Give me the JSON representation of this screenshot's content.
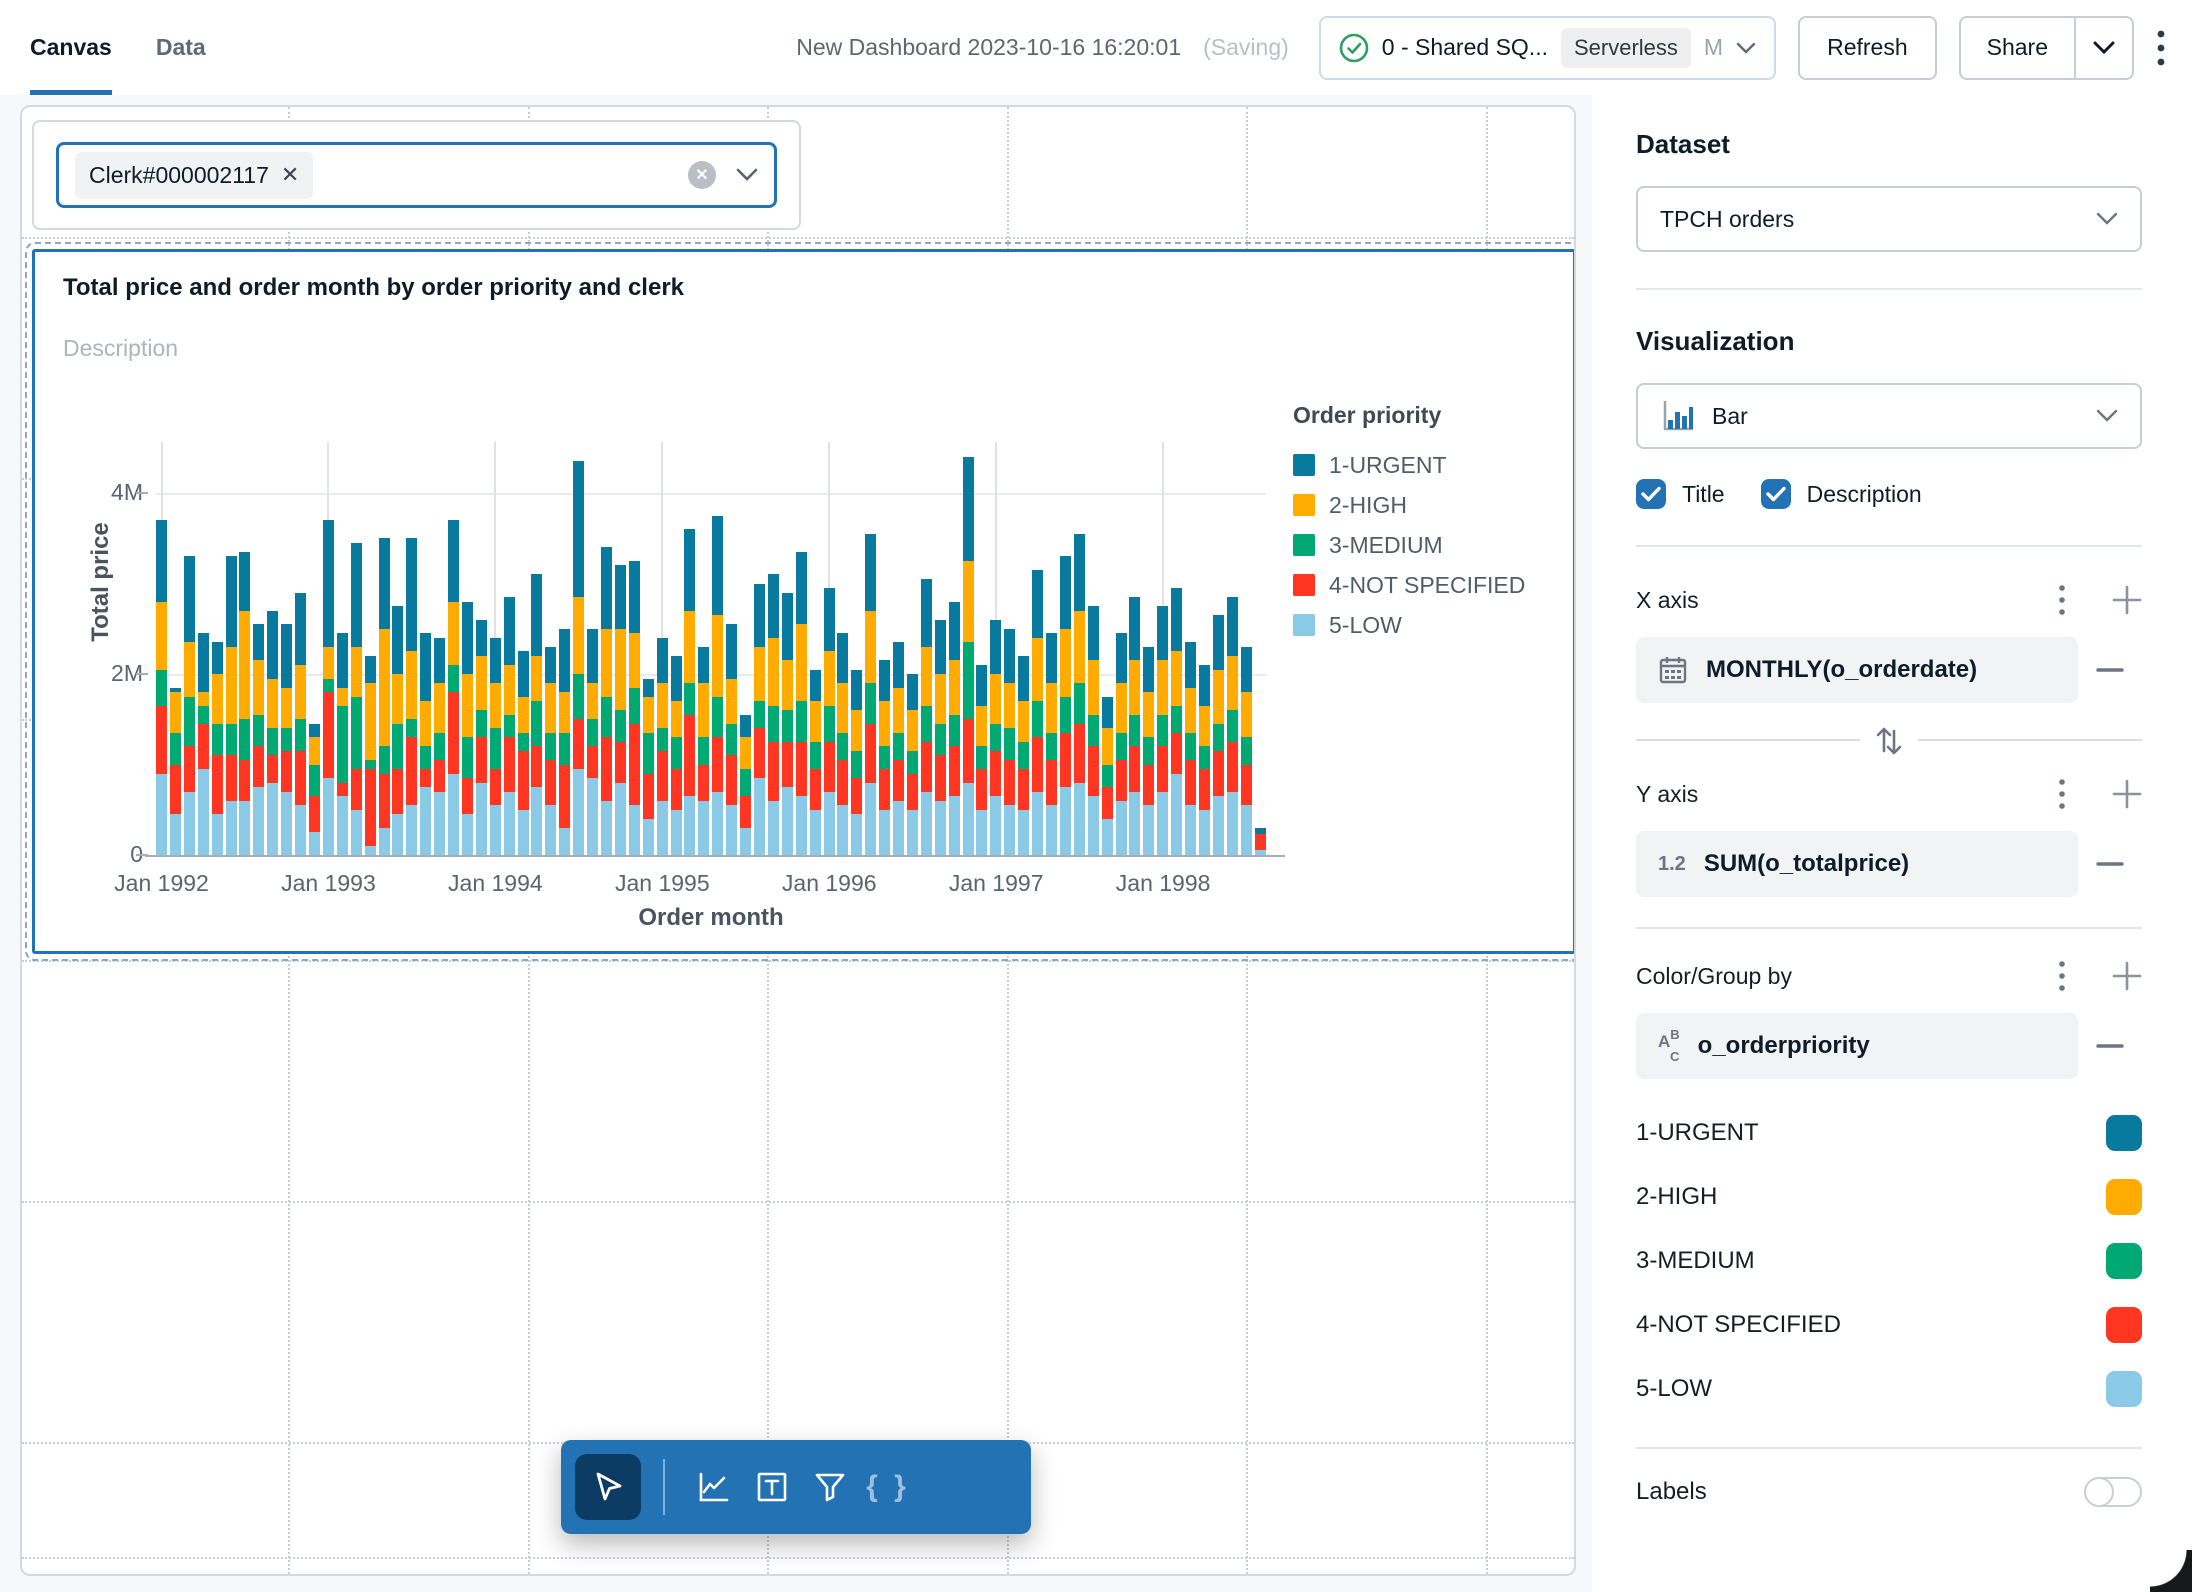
{
  "topbar": {
    "tabs": [
      {
        "label": "Canvas",
        "active": true
      },
      {
        "label": "Data",
        "active": false
      }
    ],
    "title": "New Dashboard 2023-10-16 16:20:01",
    "saving": "(Saving)",
    "warehouse": {
      "name": "0 - Shared SQ...",
      "badge": "Serverless",
      "size": "M"
    },
    "refresh_label": "Refresh",
    "share_label": "Share"
  },
  "filter": {
    "value": "Clerk#000002117"
  },
  "chart_widget": {
    "title": "Total price and order month by order priority and clerk",
    "description_placeholder": "Description",
    "y_axis_title": "Total price",
    "x_axis_title": "Order month",
    "legend_title": "Order priority"
  },
  "toolbar": {
    "tools": [
      "cursor",
      "add-visualization",
      "add-text",
      "add-filter",
      "braces"
    ],
    "selected": "cursor"
  },
  "sidebar": {
    "dataset_heading": "Dataset",
    "dataset_value": "TPCH orders",
    "visualization_heading": "Visualization",
    "visualization_value": "Bar",
    "title_checkbox": "Title",
    "description_checkbox": "Description",
    "x_axis_label": "X axis",
    "x_field": "MONTHLY(o_orderdate)",
    "y_axis_label": "Y axis",
    "y_field": "SUM(o_totalprice)",
    "color_label": "Color/Group by",
    "color_field": "o_orderpriority",
    "labels_label": "Labels",
    "labels_on": false
  },
  "colors": {
    "accent": "#2272B4",
    "1-URGENT": "#077A9D",
    "2-HIGH": "#FFAB00",
    "3-MEDIUM": "#00A972",
    "4-NOT SPECIFIED": "#FF3621",
    "5-LOW": "#8BCAE7"
  },
  "chart_data": {
    "type": "bar",
    "stacked": true,
    "title": "Total price and order month by order priority and clerk",
    "xlabel": "Order month",
    "ylabel": "Total price",
    "unit": "millions",
    "ylim": [
      0,
      4.6
    ],
    "y_ticks": [
      {
        "label": "4M",
        "value": 4
      },
      {
        "label": "2M",
        "value": 2
      },
      {
        "label": "0",
        "value": 0
      }
    ],
    "x_ticks": {
      "labels": [
        "Jan 1992",
        "Jan 1993",
        "Jan 1994",
        "Jan 1995",
        "Jan 1996",
        "Jan 1997",
        "Jan 1998"
      ],
      "month_indices": [
        0,
        12,
        24,
        36,
        48,
        60,
        72
      ]
    },
    "legend_position": "right",
    "stack_order_bottom_to_top": [
      "5-LOW",
      "4-NOT SPECIFIED",
      "3-MEDIUM",
      "2-HIGH",
      "1-URGENT"
    ],
    "categories": [
      "1992-01",
      "1992-02",
      "1992-03",
      "1992-04",
      "1992-05",
      "1992-06",
      "1992-07",
      "1992-08",
      "1992-09",
      "1992-10",
      "1992-11",
      "1992-12",
      "1993-01",
      "1993-02",
      "1993-03",
      "1993-04",
      "1993-05",
      "1993-06",
      "1993-07",
      "1993-08",
      "1993-09",
      "1993-10",
      "1993-11",
      "1993-12",
      "1994-01",
      "1994-02",
      "1994-03",
      "1994-04",
      "1994-05",
      "1994-06",
      "1994-07",
      "1994-08",
      "1994-09",
      "1994-10",
      "1994-11",
      "1994-12",
      "1995-01",
      "1995-02",
      "1995-03",
      "1995-04",
      "1995-05",
      "1995-06",
      "1995-07",
      "1995-08",
      "1995-09",
      "1995-10",
      "1995-11",
      "1995-12",
      "1996-01",
      "1996-02",
      "1996-03",
      "1996-04",
      "1996-05",
      "1996-06",
      "1996-07",
      "1996-08",
      "1996-09",
      "1996-10",
      "1996-11",
      "1996-12",
      "1997-01",
      "1997-02",
      "1997-03",
      "1997-04",
      "1997-05",
      "1997-06",
      "1997-07",
      "1997-08",
      "1997-09",
      "1997-10",
      "1997-11",
      "1997-12",
      "1998-01",
      "1998-02",
      "1998-03",
      "1998-04",
      "1998-05",
      "1998-06",
      "1998-07",
      "1998-08"
    ],
    "series": [
      {
        "name": "1-URGENT",
        "values": [
          0.9,
          0.05,
          0.95,
          0.65,
          0.35,
          1.0,
          0.65,
          0.4,
          0.75,
          0.7,
          0.8,
          0.15,
          1.4,
          0.6,
          1.15,
          0.3,
          1.0,
          0.75,
          1.25,
          0.75,
          0.5,
          0.9,
          0.8,
          0.4,
          0.5,
          0.75,
          0.5,
          0.9,
          0.4,
          0.7,
          1.5,
          0.6,
          0.9,
          0.7,
          0.8,
          0.2,
          0.5,
          0.5,
          0.9,
          0.4,
          1.1,
          0.6,
          0.25,
          0.7,
          0.7,
          0.75,
          0.8,
          0.35,
          0.7,
          0.55,
          0.45,
          0.85,
          0.45,
          0.5,
          0.4,
          0.75,
          0.6,
          0.65,
          1.15,
          0.45,
          0.6,
          0.6,
          0.5,
          0.75,
          0.55,
          0.8,
          0.85,
          0.6,
          0.35,
          0.55,
          0.7,
          0.5,
          0.6,
          0.7,
          0.5,
          0.45,
          0.6,
          0.65,
          0.5,
          0.07
        ]
      },
      {
        "name": "2-HIGH",
        "values": [
          0.75,
          0.45,
          0.6,
          0.15,
          0.55,
          0.85,
          1.2,
          0.6,
          0.55,
          0.45,
          0.6,
          0.3,
          0.35,
          0.2,
          0.55,
          0.85,
          1.3,
          0.55,
          0.75,
          0.5,
          0.55,
          0.7,
          0.7,
          0.6,
          0.5,
          0.55,
          0.4,
          0.5,
          0.55,
          0.45,
          0.85,
          0.4,
          0.75,
          0.9,
          0.6,
          0.4,
          0.5,
          0.4,
          0.8,
          0.6,
          0.9,
          0.5,
          0.35,
          0.6,
          0.75,
          0.55,
          0.85,
          0.45,
          0.6,
          0.55,
          0.45,
          0.8,
          0.5,
          0.5,
          0.45,
          0.65,
          0.55,
          0.6,
          0.9,
          0.45,
          0.55,
          0.5,
          0.45,
          0.7,
          0.55,
          0.75,
          0.8,
          0.6,
          0.4,
          0.55,
          0.6,
          0.5,
          0.6,
          0.6,
          0.5,
          0.45,
          0.6,
          0.6,
          0.5,
          0
        ]
      },
      {
        "name": "3-MEDIUM",
        "values": [
          0.4,
          0.35,
          0.55,
          0.2,
          0.35,
          0.35,
          0.45,
          0.35,
          0.3,
          0.25,
          0.35,
          0.35,
          0.15,
          0.85,
          0.8,
          0.1,
          0.3,
          0.5,
          0.2,
          0.25,
          0.3,
          0.3,
          0.45,
          0.3,
          0.45,
          0.25,
          0.2,
          0.5,
          0.3,
          0.35,
          0.5,
          0.3,
          0.45,
          0.35,
          0.4,
          0.45,
          0.25,
          0.35,
          0.35,
          0.3,
          0.45,
          0.35,
          0.3,
          0.3,
          0.4,
          0.35,
          0.45,
          0.3,
          0.4,
          0.3,
          0.3,
          0.45,
          0.25,
          0.3,
          0.25,
          0.4,
          0.35,
          0.35,
          0.85,
          0.25,
          0.3,
          0.35,
          0.3,
          0.4,
          0.3,
          0.4,
          0.45,
          0.35,
          0.25,
          0.3,
          0.35,
          0.3,
          0.35,
          0.3,
          0.3,
          0.25,
          0.3,
          0.35,
          0.3,
          0
        ]
      },
      {
        "name": "4-NOT SPECIFIED",
        "values": [
          0.75,
          0.55,
          0.5,
          0.5,
          0.65,
          0.5,
          0.45,
          0.45,
          0.3,
          0.45,
          0.6,
          0.4,
          0.95,
          0.15,
          0.45,
          0.85,
          0.6,
          0.5,
          0.75,
          0.2,
          0.35,
          0.9,
          0.4,
          0.5,
          0.4,
          0.6,
          0.65,
          0.45,
          0.5,
          0.7,
          0.55,
          0.35,
          0.7,
          0.45,
          0.9,
          0.5,
          0.55,
          0.45,
          0.9,
          0.4,
          0.6,
          0.55,
          0.35,
          0.55,
          0.65,
          0.5,
          0.6,
          0.45,
          0.55,
          0.5,
          0.4,
          0.65,
          0.45,
          0.45,
          0.4,
          0.55,
          0.5,
          0.55,
          0.7,
          0.45,
          0.5,
          0.5,
          0.45,
          0.6,
          0.5,
          0.6,
          0.65,
          0.55,
          0.35,
          0.45,
          0.5,
          0.45,
          0.5,
          0.45,
          0.5,
          0.45,
          0.5,
          0.55,
          0.45,
          0.18
        ]
      },
      {
        "name": "5-LOW",
        "values": [
          0.9,
          0.45,
          0.7,
          0.95,
          0.45,
          0.6,
          0.6,
          0.75,
          0.8,
          0.7,
          0.55,
          0.25,
          0.85,
          0.65,
          0.5,
          0.1,
          0.3,
          0.45,
          0.55,
          0.75,
          0.7,
          0.9,
          0.45,
          0.8,
          0.55,
          0.7,
          0.5,
          0.75,
          0.55,
          0.3,
          0.95,
          0.85,
          0.6,
          0.8,
          0.55,
          0.4,
          0.6,
          0.5,
          0.65,
          0.6,
          0.7,
          0.55,
          0.3,
          0.85,
          0.6,
          0.75,
          0.65,
          0.5,
          0.7,
          0.55,
          0.45,
          0.8,
          0.5,
          0.6,
          0.5,
          0.7,
          0.6,
          0.65,
          0.8,
          0.5,
          0.65,
          0.55,
          0.5,
          0.7,
          0.55,
          0.75,
          0.8,
          0.65,
          0.4,
          0.6,
          0.7,
          0.55,
          0.7,
          0.9,
          0.55,
          0.5,
          0.65,
          0.7,
          0.55,
          0.05
        ]
      }
    ]
  },
  "sidebar_legend": [
    {
      "label": "1-URGENT",
      "color": "#077A9D"
    },
    {
      "label": "2-HIGH",
      "color": "#FFAB00"
    },
    {
      "label": "3-MEDIUM",
      "color": "#00A972"
    },
    {
      "label": "4-NOT SPECIFIED",
      "color": "#FF3621"
    },
    {
      "label": "5-LOW",
      "color": "#8BCAE7"
    }
  ]
}
